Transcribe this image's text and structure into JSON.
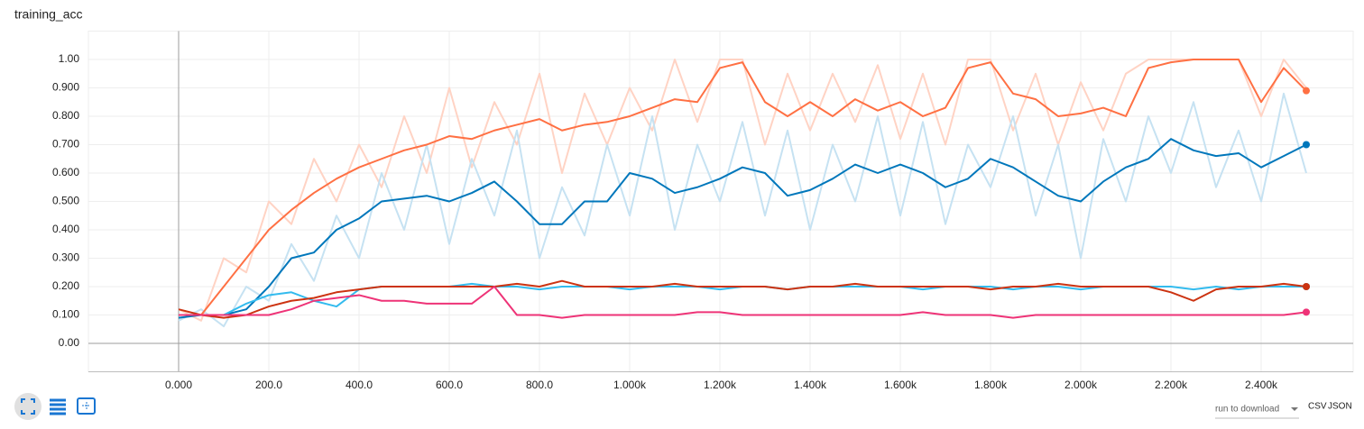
{
  "chart_data": {
    "type": "line",
    "title": "training_acc",
    "x": [
      0,
      50,
      100,
      150,
      200,
      250,
      300,
      350,
      400,
      450,
      500,
      550,
      600,
      650,
      700,
      750,
      800,
      850,
      900,
      950,
      1000,
      1050,
      1100,
      1150,
      1200,
      1250,
      1300,
      1350,
      1400,
      1450,
      1500,
      1550,
      1600,
      1650,
      1700,
      1750,
      1800,
      1850,
      1900,
      1950,
      2000,
      2050,
      2100,
      2150,
      2200,
      2250,
      2300,
      2350,
      2400,
      2450,
      2500
    ],
    "series": [
      {
        "color": "#ffd3c4",
        "values": [
          0.12,
          0.08,
          0.3,
          0.25,
          0.5,
          0.42,
          0.65,
          0.5,
          0.7,
          0.55,
          0.8,
          0.6,
          0.9,
          0.62,
          0.85,
          0.7,
          0.95,
          0.6,
          0.88,
          0.7,
          0.9,
          0.75,
          1.0,
          0.78,
          1.0,
          1.0,
          0.7,
          0.95,
          0.75,
          0.95,
          0.78,
          0.98,
          0.72,
          0.95,
          0.7,
          1.0,
          1.0,
          0.75,
          0.95,
          0.7,
          0.92,
          0.75,
          0.95,
          1.0,
          1.0,
          1.0,
          1.0,
          1.0,
          0.8,
          1.0,
          0.9
        ]
      },
      {
        "color": "#c6e2f2",
        "values": [
          0.08,
          0.12,
          0.06,
          0.2,
          0.15,
          0.35,
          0.22,
          0.45,
          0.3,
          0.6,
          0.4,
          0.7,
          0.35,
          0.65,
          0.45,
          0.75,
          0.3,
          0.55,
          0.38,
          0.7,
          0.45,
          0.8,
          0.4,
          0.7,
          0.5,
          0.78,
          0.45,
          0.75,
          0.4,
          0.7,
          0.5,
          0.8,
          0.45,
          0.78,
          0.42,
          0.7,
          0.55,
          0.8,
          0.45,
          0.7,
          0.3,
          0.72,
          0.5,
          0.8,
          0.6,
          0.85,
          0.55,
          0.75,
          0.5,
          0.88,
          0.6
        ]
      },
      {
        "color": "#ff7043",
        "values": [
          0.1,
          0.1,
          0.2,
          0.3,
          0.4,
          0.47,
          0.53,
          0.58,
          0.62,
          0.65,
          0.68,
          0.7,
          0.73,
          0.72,
          0.75,
          0.77,
          0.79,
          0.75,
          0.77,
          0.78,
          0.8,
          0.83,
          0.86,
          0.85,
          0.97,
          0.99,
          0.85,
          0.8,
          0.85,
          0.8,
          0.86,
          0.82,
          0.85,
          0.8,
          0.83,
          0.97,
          0.99,
          0.88,
          0.86,
          0.8,
          0.81,
          0.83,
          0.8,
          0.97,
          0.99,
          1.0,
          1.0,
          1.0,
          0.85,
          0.97,
          0.89
        ]
      },
      {
        "color": "#0077bb",
        "values": [
          0.09,
          0.1,
          0.1,
          0.12,
          0.2,
          0.3,
          0.32,
          0.4,
          0.44,
          0.5,
          0.51,
          0.52,
          0.5,
          0.53,
          0.57,
          0.5,
          0.42,
          0.42,
          0.5,
          0.5,
          0.6,
          0.58,
          0.53,
          0.55,
          0.58,
          0.62,
          0.6,
          0.52,
          0.54,
          0.58,
          0.63,
          0.6,
          0.63,
          0.6,
          0.55,
          0.58,
          0.65,
          0.62,
          0.57,
          0.52,
          0.5,
          0.57,
          0.62,
          0.65,
          0.72,
          0.68,
          0.66,
          0.67,
          0.62,
          0.66,
          0.7
        ]
      },
      {
        "color": "#33bbee",
        "values": [
          0.1,
          0.1,
          0.1,
          0.14,
          0.17,
          0.18,
          0.15,
          0.13,
          0.19,
          0.2,
          0.2,
          0.2,
          0.2,
          0.21,
          0.2,
          0.2,
          0.19,
          0.2,
          0.2,
          0.2,
          0.19,
          0.2,
          0.2,
          0.2,
          0.19,
          0.2,
          0.2,
          0.19,
          0.2,
          0.2,
          0.2,
          0.2,
          0.2,
          0.19,
          0.2,
          0.2,
          0.2,
          0.19,
          0.2,
          0.2,
          0.19,
          0.2,
          0.2,
          0.2,
          0.2,
          0.19,
          0.2,
          0.19,
          0.2,
          0.2,
          0.2
        ]
      },
      {
        "color": "#cc3311",
        "values": [
          0.12,
          0.1,
          0.09,
          0.1,
          0.13,
          0.15,
          0.16,
          0.18,
          0.19,
          0.2,
          0.2,
          0.2,
          0.2,
          0.2,
          0.2,
          0.21,
          0.2,
          0.22,
          0.2,
          0.2,
          0.2,
          0.2,
          0.21,
          0.2,
          0.2,
          0.2,
          0.2,
          0.19,
          0.2,
          0.2,
          0.21,
          0.2,
          0.2,
          0.2,
          0.2,
          0.2,
          0.19,
          0.2,
          0.2,
          0.21,
          0.2,
          0.2,
          0.2,
          0.2,
          0.18,
          0.15,
          0.19,
          0.2,
          0.2,
          0.21,
          0.2
        ]
      },
      {
        "color": "#ee3377",
        "values": [
          0.1,
          0.1,
          0.1,
          0.1,
          0.1,
          0.12,
          0.15,
          0.16,
          0.17,
          0.15,
          0.15,
          0.14,
          0.14,
          0.14,
          0.2,
          0.1,
          0.1,
          0.09,
          0.1,
          0.1,
          0.1,
          0.1,
          0.1,
          0.11,
          0.11,
          0.1,
          0.1,
          0.1,
          0.1,
          0.1,
          0.1,
          0.1,
          0.1,
          0.11,
          0.1,
          0.1,
          0.1,
          0.09,
          0.1,
          0.1,
          0.1,
          0.1,
          0.1,
          0.1,
          0.1,
          0.1,
          0.1,
          0.1,
          0.1,
          0.1,
          0.11
        ]
      }
    ],
    "xlim": [
      -200,
      2604
    ],
    "ylim": [
      -0.1,
      1.1
    ],
    "xticks": [
      {
        "value": 0,
        "label": "0.000"
      },
      {
        "value": 200,
        "label": "200.0"
      },
      {
        "value": 400,
        "label": "400.0"
      },
      {
        "value": 600,
        "label": "600.0"
      },
      {
        "value": 800,
        "label": "800.0"
      },
      {
        "value": 1000,
        "label": "1.000k"
      },
      {
        "value": 1200,
        "label": "1.200k"
      },
      {
        "value": 1400,
        "label": "1.400k"
      },
      {
        "value": 1600,
        "label": "1.600k"
      },
      {
        "value": 1800,
        "label": "1.800k"
      },
      {
        "value": 2000,
        "label": "2.000k"
      },
      {
        "value": 2200,
        "label": "2.200k"
      },
      {
        "value": 2400,
        "label": "2.400k"
      }
    ],
    "yticks": [
      {
        "value": 0,
        "label": "0.00"
      },
      {
        "value": 0.1,
        "label": "0.100"
      },
      {
        "value": 0.2,
        "label": "0.200"
      },
      {
        "value": 0.3,
        "label": "0.300"
      },
      {
        "value": 0.4,
        "label": "0.400"
      },
      {
        "value": 0.5,
        "label": "0.500"
      },
      {
        "value": 0.6,
        "label": "0.600"
      },
      {
        "value": 0.7,
        "label": "0.700"
      },
      {
        "value": 0.8,
        "label": "0.800"
      },
      {
        "value": 0.9,
        "label": "0.900"
      },
      {
        "value": 1,
        "label": "1.00"
      }
    ],
    "grid": true
  },
  "controls": {
    "download_label": "run to download",
    "csv": "CSV",
    "json": "JSON"
  }
}
